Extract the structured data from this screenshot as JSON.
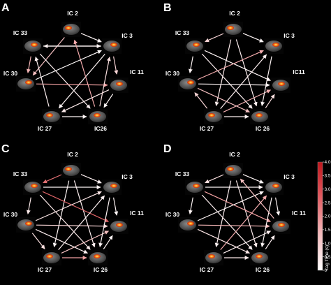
{
  "colorbar": {
    "ticks": [
      "4.0",
      "3.5",
      "3.0",
      "2.5",
      "2.0",
      "1.5",
      "1.0",
      "0.5",
      "0"
    ],
    "title": "Lag Time (s)",
    "color_low": "#ffffff",
    "color_high": "#c0161c"
  },
  "panels": [
    {
      "letter": "A",
      "nodes": [
        "IC 2",
        "IC 3",
        "IC 11",
        "IC26",
        "IC 27",
        "IC 30",
        "IC 33"
      ],
      "edges": [
        {
          "from": 0,
          "to": 1,
          "lag": 0.2
        },
        {
          "from": 0,
          "to": 5,
          "lag": 1.2
        },
        {
          "from": 1,
          "to": 4,
          "lag": 0.2
        },
        {
          "from": 1,
          "to": 6,
          "lag": 0.3
        },
        {
          "from": 6,
          "to": 1,
          "lag": 0.2
        },
        {
          "from": 3,
          "to": 0,
          "lag": 1.6
        },
        {
          "from": 6,
          "to": 3,
          "lag": 0.3
        },
        {
          "from": 5,
          "to": 2,
          "lag": 1.8
        },
        {
          "from": 2,
          "to": 4,
          "lag": 0.4
        },
        {
          "from": 3,
          "to": 1,
          "lag": 0.6
        },
        {
          "from": 4,
          "to": 6,
          "lag": 0.3
        },
        {
          "from": 2,
          "to": 3,
          "lag": 0.2
        },
        {
          "from": 5,
          "to": 1,
          "lag": 0.1
        },
        {
          "from": 4,
          "to": 3,
          "lag": 0.2
        },
        {
          "from": 6,
          "to": 5,
          "lag": 1.4
        },
        {
          "from": 1,
          "to": 2,
          "lag": 0.8
        }
      ]
    },
    {
      "letter": "B",
      "nodes": [
        "IC 2",
        "IC 3",
        "IC11",
        "IC 26",
        "IC 27",
        "IC 30",
        "IC 33"
      ],
      "edges": [
        {
          "from": 0,
          "to": 1,
          "lag": 0.2
        },
        {
          "from": 0,
          "to": 6,
          "lag": 0.8
        },
        {
          "from": 0,
          "to": 3,
          "lag": 0.3
        },
        {
          "from": 0,
          "to": 4,
          "lag": 0.4
        },
        {
          "from": 6,
          "to": 2,
          "lag": 0.2
        },
        {
          "from": 6,
          "to": 3,
          "lag": 0.3
        },
        {
          "from": 5,
          "to": 1,
          "lag": 1.6
        },
        {
          "from": 4,
          "to": 2,
          "lag": 1.5
        },
        {
          "from": 5,
          "to": 2,
          "lag": 0.2
        },
        {
          "from": 4,
          "to": 1,
          "lag": 0.3
        },
        {
          "from": 1,
          "to": 3,
          "lag": 0.2
        },
        {
          "from": 3,
          "to": 2,
          "lag": 0.6
        },
        {
          "from": 4,
          "to": 5,
          "lag": 0.8
        },
        {
          "from": 4,
          "to": 3,
          "lag": 0.3
        },
        {
          "from": 6,
          "to": 5,
          "lag": 0.2
        },
        {
          "from": 5,
          "to": 3,
          "lag": 1.2
        }
      ]
    },
    {
      "letter": "C",
      "nodes": [
        "IC 2",
        "IC 3",
        "IC 11",
        "IC 26",
        "IC 27",
        "IC 30",
        "IC 33"
      ],
      "edges": [
        {
          "from": 0,
          "to": 6,
          "lag": 2.6
        },
        {
          "from": 0,
          "to": 1,
          "lag": 0.3
        },
        {
          "from": 0,
          "to": 4,
          "lag": 0.2
        },
        {
          "from": 0,
          "to": 3,
          "lag": 0.3
        },
        {
          "from": 6,
          "to": 2,
          "lag": 2.8
        },
        {
          "from": 6,
          "to": 3,
          "lag": 0.4
        },
        {
          "from": 6,
          "to": 1,
          "lag": 0.2
        },
        {
          "from": 5,
          "to": 1,
          "lag": 0.5
        },
        {
          "from": 5,
          "to": 2,
          "lag": 0.8
        },
        {
          "from": 4,
          "to": 2,
          "lag": 1.2
        },
        {
          "from": 4,
          "to": 1,
          "lag": 0.3
        },
        {
          "from": 1,
          "to": 3,
          "lag": 0.2
        },
        {
          "from": 3,
          "to": 2,
          "lag": 0.2
        },
        {
          "from": 4,
          "to": 3,
          "lag": 1.8
        },
        {
          "from": 5,
          "to": 3,
          "lag": 0.3
        },
        {
          "from": 6,
          "to": 5,
          "lag": 0.4
        },
        {
          "from": 5,
          "to": 4,
          "lag": 0.6
        },
        {
          "from": 1,
          "to": 2,
          "lag": 0.2
        }
      ]
    },
    {
      "letter": "D",
      "nodes": [
        "IC 2",
        "IC 3",
        "IC 11",
        "IC 26",
        "IC 27",
        "IC 30",
        "IC 33"
      ],
      "edges": [
        {
          "from": 0,
          "to": 6,
          "lag": 0.6
        },
        {
          "from": 0,
          "to": 1,
          "lag": 0.2
        },
        {
          "from": 0,
          "to": 4,
          "lag": 0.3
        },
        {
          "from": 0,
          "to": 3,
          "lag": 0.4
        },
        {
          "from": 6,
          "to": 2,
          "lag": 1.8
        },
        {
          "from": 6,
          "to": 3,
          "lag": 0.3
        },
        {
          "from": 6,
          "to": 1,
          "lag": 0.2
        },
        {
          "from": 5,
          "to": 1,
          "lag": 0.2
        },
        {
          "from": 5,
          "to": 2,
          "lag": 1.4
        },
        {
          "from": 4,
          "to": 2,
          "lag": 0.3
        },
        {
          "from": 4,
          "to": 1,
          "lag": 1.6
        },
        {
          "from": 1,
          "to": 3,
          "lag": 0.2
        },
        {
          "from": 3,
          "to": 2,
          "lag": 0.3
        },
        {
          "from": 4,
          "to": 3,
          "lag": 0.4
        },
        {
          "from": 5,
          "to": 3,
          "lag": 0.5
        },
        {
          "from": 6,
          "to": 5,
          "lag": 0.2
        },
        {
          "from": 1,
          "to": 2,
          "lag": 0.2
        },
        {
          "from": 2,
          "to": 0,
          "lag": 1.2
        }
      ]
    }
  ]
}
